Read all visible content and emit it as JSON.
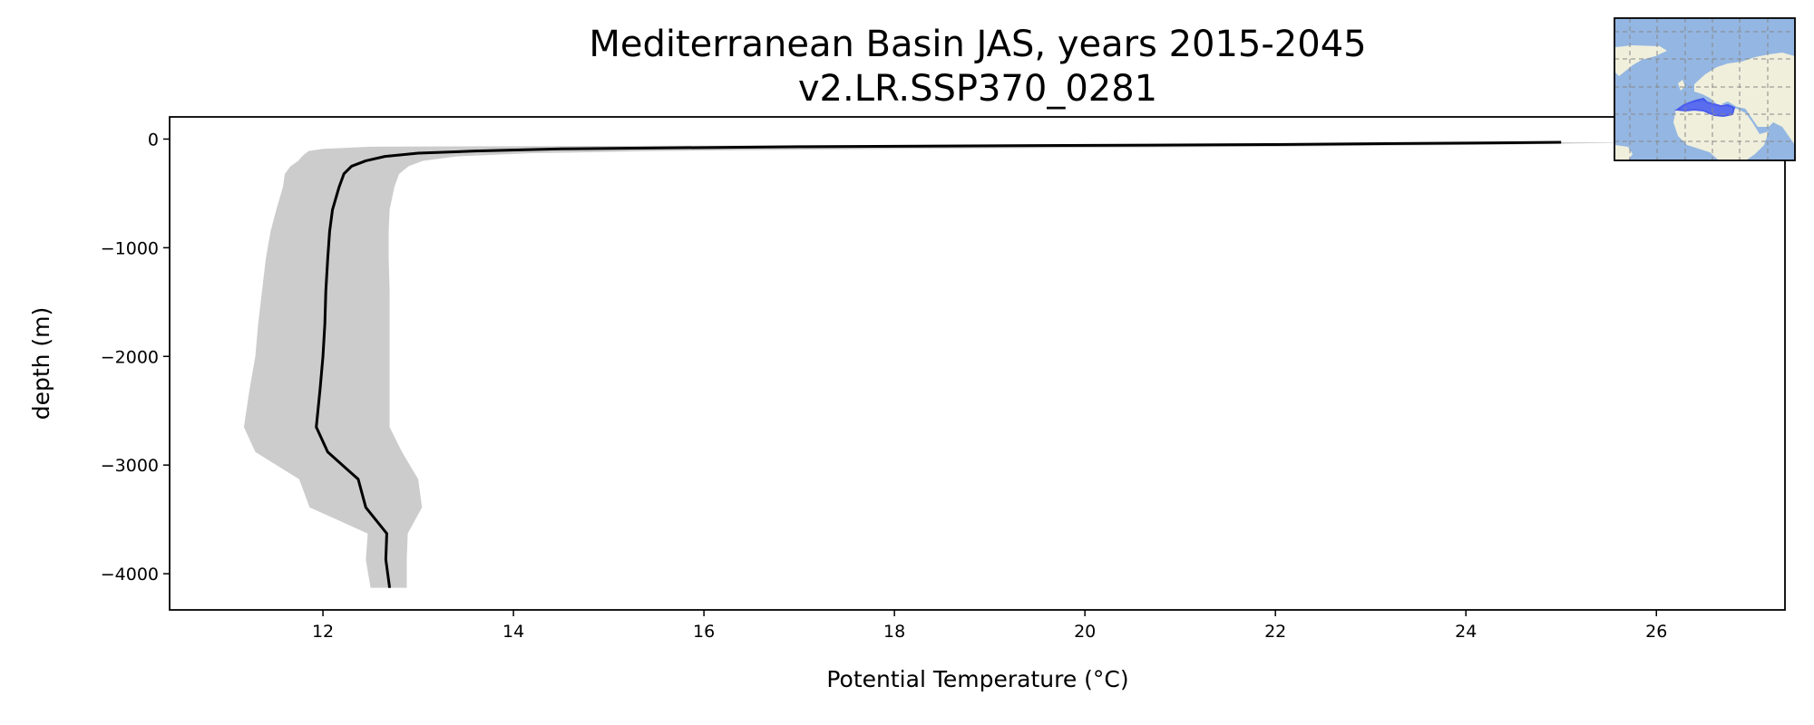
{
  "chart_data": {
    "type": "line",
    "title": [
      "Mediterranean Basin JAS, years 2015-2045",
      "v2.LR.SSP370_0281"
    ],
    "xlabel": "Potential Temperature (°C)",
    "ylabel": "depth (m)",
    "xlim": [
      10.39,
      27.35
    ],
    "ylim": [
      -4333,
      204
    ],
    "xticks": [
      12,
      14,
      16,
      18,
      20,
      22,
      24,
      26
    ],
    "xtick_labels": [
      "12",
      "14",
      "16",
      "18",
      "20",
      "22",
      "24",
      "26"
    ],
    "yticks": [
      0,
      -1000,
      -2000,
      -3000,
      -4000
    ],
    "ytick_labels": [
      "0",
      "−1000",
      "−2000",
      "−3000",
      "−4000"
    ],
    "grid": false,
    "depth": [
      -30,
      -50,
      -70,
      -90,
      -110,
      -130,
      -160,
      -200,
      -250,
      -320,
      -440,
      -650,
      -850,
      -1100,
      -1400,
      -1700,
      -2000,
      -2300,
      -2650,
      -2880,
      -3130,
      -3390,
      -3630,
      -3870,
      -4130
    ],
    "mean": [
      25.0,
      22.0,
      17.0,
      14.5,
      13.6,
      13.0,
      12.65,
      12.45,
      12.3,
      12.22,
      12.17,
      12.1,
      12.07,
      12.05,
      12.03,
      12.02,
      12.0,
      11.97,
      11.93,
      12.05,
      12.37,
      12.45,
      12.67,
      12.66,
      12.7
    ],
    "lower": [
      24.9,
      20.0,
      12.5,
      12.0,
      11.85,
      11.82,
      11.78,
      11.74,
      11.66,
      11.6,
      11.58,
      11.51,
      11.45,
      11.4,
      11.36,
      11.32,
      11.29,
      11.23,
      11.17,
      11.29,
      11.75,
      11.86,
      12.47,
      12.45,
      12.5
    ],
    "upper": [
      25.8,
      24.5,
      22.0,
      18.0,
      15.5,
      14.2,
      13.4,
      13.05,
      12.9,
      12.8,
      12.75,
      12.7,
      12.69,
      12.69,
      12.7,
      12.7,
      12.7,
      12.7,
      12.7,
      12.83,
      13.0,
      13.04,
      12.89,
      12.88,
      12.88
    ],
    "colors": {
      "line": "#000000",
      "band": "#cccccc",
      "ocean": "#94b6e2",
      "land": "#efefdc",
      "region": "#3a4df0"
    },
    "inset": "region-map"
  }
}
